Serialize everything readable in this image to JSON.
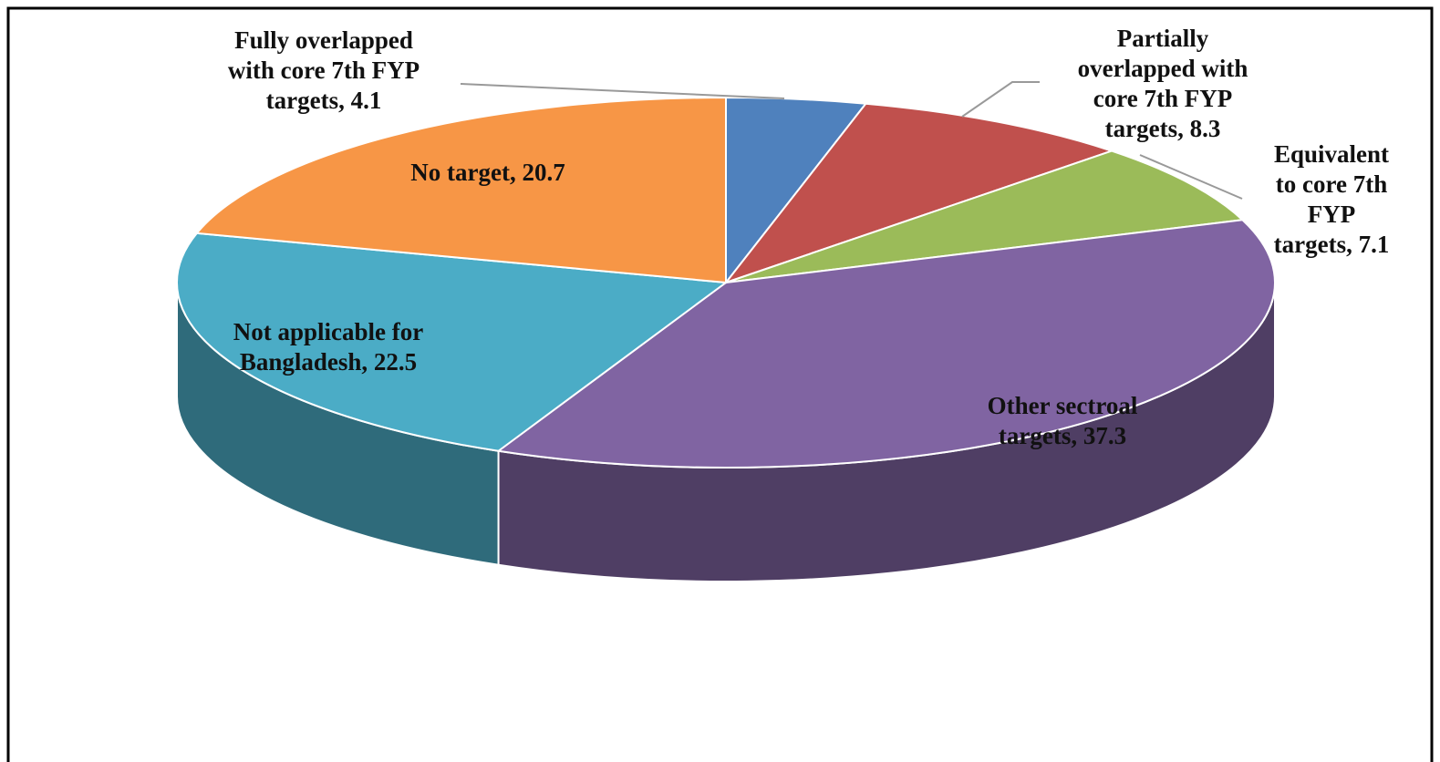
{
  "chart_data": {
    "type": "pie3d",
    "categories": [
      "Fully overlapped with core 7th FYP targets",
      "Partially overlapped with core 7th FYP targets",
      "Equivalent to core 7th FYP targets",
      "Other sectroal targets",
      "Not applicable for Bangladesh",
      "No target"
    ],
    "values": [
      4.1,
      8.3,
      7.1,
      37.3,
      22.5,
      20.7
    ],
    "value_labels": [
      "Fully overlapped with core 7th FYP targets, 4.1",
      "Partially overlapped with core 7th FYP targets, 8.3",
      "Equivalent to core 7th FYP targets, 7.1",
      "Other sectroal targets, 37.3",
      "Not applicable for Bangladesh, 22.5",
      "No target, 20.7"
    ],
    "colors": [
      "#4f81bd",
      "#c0504d",
      "#9bbb59",
      "#8064a2",
      "#4bacc6",
      "#f79646"
    ]
  }
}
